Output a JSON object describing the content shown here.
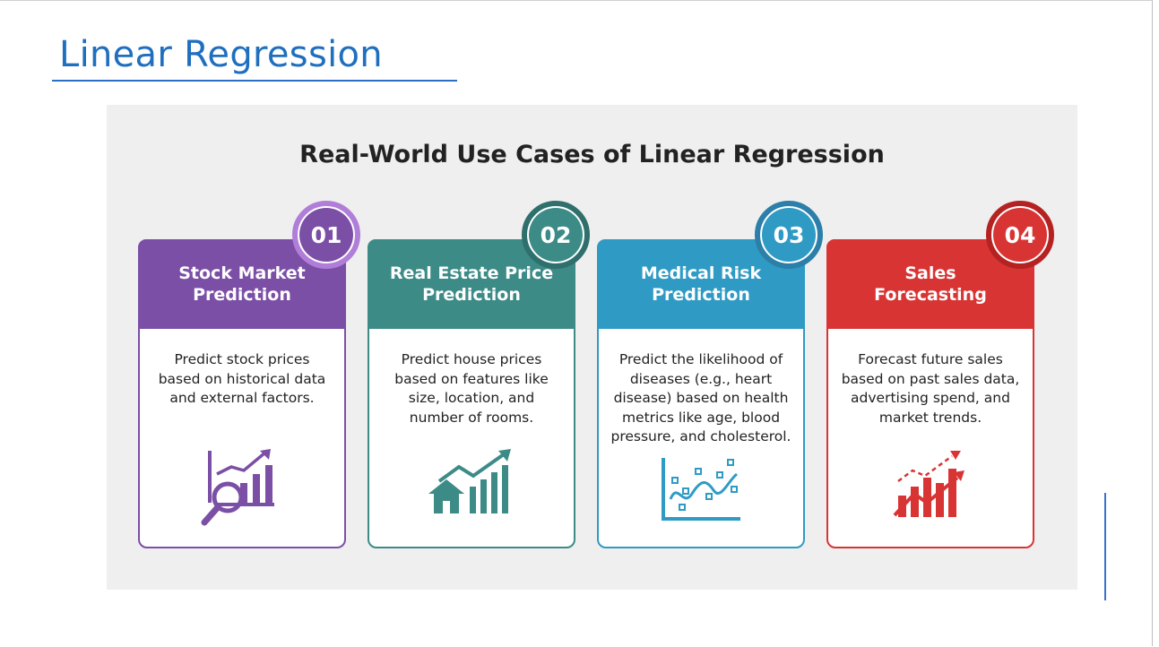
{
  "slide": {
    "title": "Linear Regression"
  },
  "infographic": {
    "heading": "Real-World Use Cases of Linear Regression",
    "cards": [
      {
        "number": "01",
        "title": "Stock Market\nPrediction",
        "description": "Predict stock prices\nbased on historical data\nand external factors.",
        "icon": "chart-magnifier-icon",
        "color": "#7b4fa6",
        "badge_ring": "#b07dd8"
      },
      {
        "number": "02",
        "title": "Real Estate Price\nPrediction",
        "description": "Predict house prices\nbased on features like\nsize, location, and\nnumber of rooms.",
        "icon": "house-growth-icon",
        "color": "#3c8b87",
        "badge_ring": "#2f6f6c"
      },
      {
        "number": "03",
        "title": "Medical Risk\nPrediction",
        "description": "Predict the likelihood of\ndiseases (e.g., heart\ndisease) based on health\nmetrics like age, blood\npressure, and cholesterol.",
        "icon": "scatter-trend-icon",
        "color": "#2f9bc4",
        "badge_ring": "#2b7fa8"
      },
      {
        "number": "04",
        "title": "Sales\nForecasting",
        "description": "Forecast future sales\nbased on past sales data,\nadvertising spend, and\nmarket trends.",
        "icon": "bar-growth-icon",
        "color": "#d93434",
        "badge_ring": "#b52222"
      }
    ]
  }
}
